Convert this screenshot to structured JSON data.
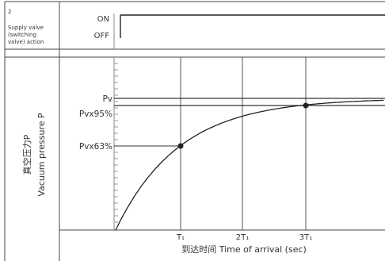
{
  "valve_panel": {
    "index": "2",
    "label_lines": [
      "Supply valve",
      "(switching",
      "valve) action"
    ],
    "on_label": "ON",
    "off_label": "OFF"
  },
  "y_axis": {
    "label_cn": "真空压力P",
    "label_en": "Vacuum pressure P",
    "levels": {
      "pv": "Pv",
      "pv95": "Pvx95%",
      "pv63": "Pvx63%"
    }
  },
  "x_axis": {
    "label": "到达时间 Time of arrival (sec)",
    "ticks": [
      "T₁",
      "2T₁",
      "3T₁"
    ]
  },
  "chart_data": {
    "type": "line",
    "xlabel": "到达时间 Time of arrival (sec)",
    "ylabel": "真空压力P Vacuum pressure P",
    "x_ticks": [
      "T₁",
      "2T₁",
      "3T₁"
    ],
    "y_ticks": [
      "Pvx63%",
      "Pvx95%",
      "Pv"
    ],
    "series": [
      {
        "points": [
          [
            0,
            0
          ],
          [
            1,
            0.63
          ],
          [
            3,
            0.95
          ],
          [
            4.2,
            1.0
          ]
        ]
      }
    ],
    "markers": [
      {
        "x": 1,
        "y": 0.63
      },
      {
        "x": 3,
        "y": 0.95
      }
    ]
  }
}
